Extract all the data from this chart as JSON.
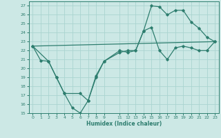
{
  "xlabel": "Humidex (Indice chaleur)",
  "bg_color": "#cce8e5",
  "line_color": "#2d7d6e",
  "grid_color": "#aad4d0",
  "xlim": [
    -0.5,
    23.5
  ],
  "ylim": [
    15,
    27.5
  ],
  "yticks": [
    15,
    16,
    17,
    18,
    19,
    20,
    21,
    22,
    23,
    24,
    25,
    26,
    27
  ],
  "xtick_vals": [
    0,
    1,
    2,
    3,
    4,
    5,
    6,
    7,
    8,
    9,
    11,
    12,
    13,
    14,
    15,
    16,
    17,
    18,
    19,
    20,
    21,
    22,
    23
  ],
  "line1_x": [
    0,
    1,
    2,
    3,
    4,
    5,
    6,
    7,
    8,
    9,
    11,
    12,
    13,
    14,
    15,
    16,
    17,
    18,
    19,
    20,
    21,
    22,
    23
  ],
  "line1_y": [
    22.5,
    20.9,
    20.8,
    19.0,
    17.2,
    15.6,
    15.0,
    16.4,
    19.0,
    20.8,
    21.8,
    22.0,
    22.0,
    24.2,
    27.0,
    26.9,
    26.0,
    26.5,
    26.5,
    25.2,
    24.5,
    23.5,
    23.0
  ],
  "line2_x": [
    0,
    2,
    3,
    4,
    6,
    7,
    8,
    9,
    11,
    12,
    13,
    14,
    15,
    16,
    17,
    18,
    19,
    20,
    21,
    22,
    23
  ],
  "line2_y": [
    22.5,
    20.8,
    19.0,
    17.2,
    17.2,
    16.4,
    19.2,
    20.8,
    22.0,
    21.8,
    22.0,
    24.2,
    24.6,
    22.0,
    21.0,
    22.3,
    22.5,
    22.3,
    22.0,
    22.0,
    23.0
  ],
  "line3_x": [
    0,
    23
  ],
  "line3_y": [
    22.5,
    23.0
  ]
}
